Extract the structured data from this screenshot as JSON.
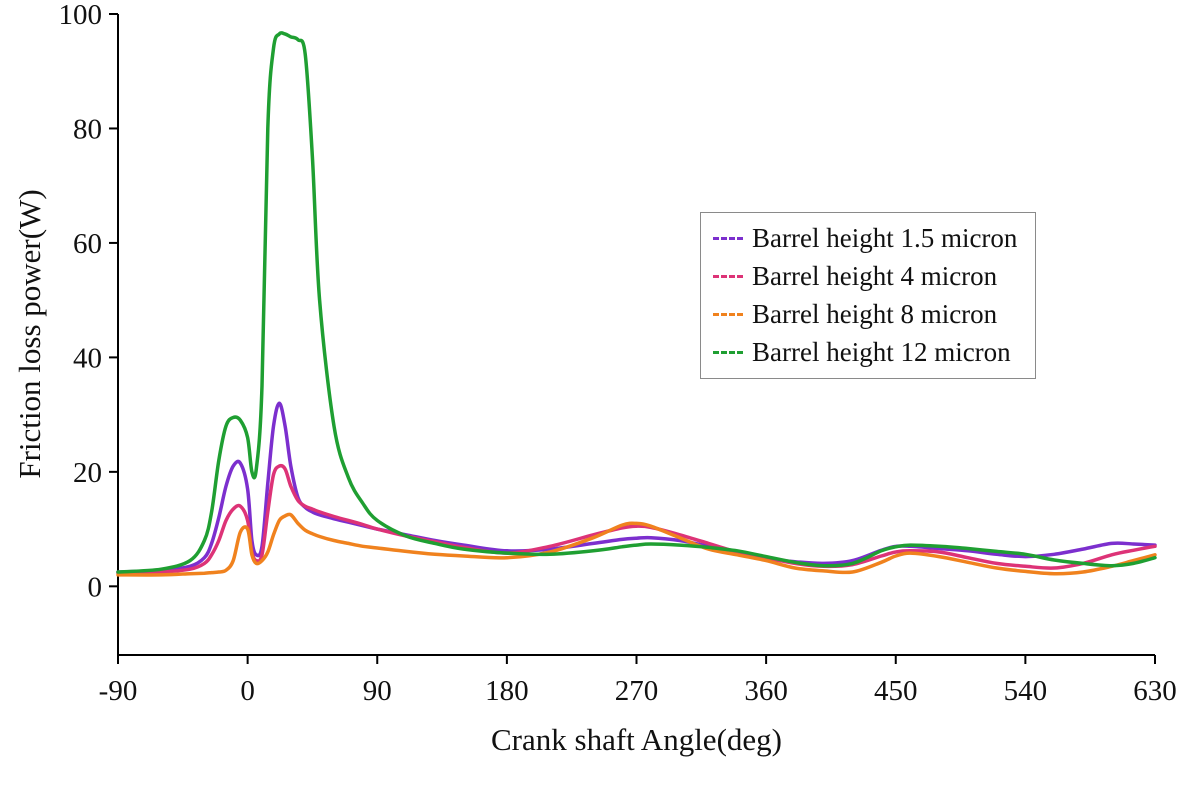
{
  "chart_data": {
    "type": "line",
    "title": "",
    "xlabel": "Crank shaft Angle(deg)",
    "ylabel": "Friction loss power(W)",
    "xlim": [
      -90,
      630
    ],
    "ylim": [
      -12,
      100
    ],
    "xticks": [
      -90,
      0,
      90,
      180,
      270,
      360,
      450,
      540,
      630
    ],
    "yticks": [
      0,
      20,
      40,
      60,
      80,
      100
    ],
    "grid": false,
    "legend_position": "upper-right",
    "legend_style": "dashed-swatches",
    "axis_color": "#000000",
    "x": [
      -90,
      -60,
      -40,
      -30,
      -25,
      -20,
      -15,
      -10,
      -5,
      0,
      3,
      6,
      10,
      14,
      18,
      22,
      26,
      30,
      35,
      40,
      45,
      50,
      60,
      70,
      80,
      90,
      110,
      130,
      150,
      180,
      210,
      240,
      260,
      270,
      280,
      300,
      320,
      340,
      360,
      380,
      400,
      420,
      440,
      450,
      460,
      480,
      500,
      520,
      540,
      560,
      580,
      600,
      615,
      630
    ],
    "series": [
      {
        "name": "Barrel height 1.5 micron",
        "color": "#7c2fce",
        "values": [
          2.5,
          2.8,
          3.5,
          5,
          7.5,
          12,
          17.5,
          21,
          21.5,
          17,
          8,
          5.5,
          7,
          18,
          28,
          32,
          28,
          21,
          15.5,
          13.8,
          13,
          12.5,
          11.8,
          11.2,
          10.6,
          10,
          9,
          8,
          7.2,
          6.2,
          6.5,
          7.5,
          8.2,
          8.4,
          8.5,
          8,
          7,
          5.8,
          4.8,
          4.3,
          4,
          4.5,
          6.3,
          7,
          7,
          6.6,
          6.2,
          5.6,
          5.2,
          5.6,
          6.5,
          7.5,
          7.4,
          7.2
        ]
      },
      {
        "name": "Barrel height 4 micron",
        "color": "#dd3377",
        "values": [
          2.3,
          2.5,
          3,
          4,
          5.5,
          8,
          11.5,
          13.5,
          14,
          11.5,
          6,
          4.5,
          5.5,
          13,
          19.5,
          21,
          20.5,
          17.5,
          15,
          14,
          13.5,
          13,
          12.2,
          11.5,
          10.8,
          10,
          8.8,
          7.8,
          6.8,
          5.8,
          7,
          9,
          10.2,
          10.5,
          10.3,
          9,
          7.5,
          6,
          5,
          4,
          3.5,
          3.8,
          5.3,
          6,
          6.2,
          6,
          5,
          4,
          3.5,
          3.2,
          4,
          5.5,
          6.3,
          7
        ]
      },
      {
        "name": "Barrel height 8 micron",
        "color": "#f0821e",
        "values": [
          2,
          2,
          2.2,
          2.3,
          2.4,
          2.5,
          2.8,
          4.5,
          9.5,
          10,
          5.5,
          4,
          4.5,
          6,
          9,
          11.5,
          12.3,
          12.5,
          11,
          9.8,
          9.2,
          8.7,
          8,
          7.5,
          7,
          6.7,
          6.1,
          5.6,
          5.3,
          5,
          6,
          8.5,
          10.7,
          11,
          10.5,
          8.5,
          6.5,
          5.5,
          4.5,
          3.2,
          2.7,
          2.5,
          4.2,
          5.3,
          5.8,
          5.2,
          4.2,
          3.2,
          2.6,
          2.2,
          2.5,
          3.5,
          4.5,
          5.5
        ]
      },
      {
        "name": "Barrel height 12 micron",
        "color": "#1f9f32",
        "values": [
          2.5,
          3,
          4.5,
          8,
          13,
          22,
          28,
          29.5,
          29,
          26,
          20,
          20.5,
          35,
          80,
          94,
          96.5,
          96.5,
          96,
          95.5,
          93,
          75,
          50,
          28,
          19,
          14.5,
          11.5,
          8.8,
          7.5,
          6.5,
          5.8,
          5.6,
          6.2,
          6.9,
          7.2,
          7.4,
          7.2,
          6.8,
          6.2,
          5.2,
          4.2,
          3.6,
          4,
          6.2,
          6.9,
          7.2,
          7,
          6.6,
          6.1,
          5.6,
          4.6,
          4,
          3.6,
          4,
          5
        ]
      }
    ]
  }
}
